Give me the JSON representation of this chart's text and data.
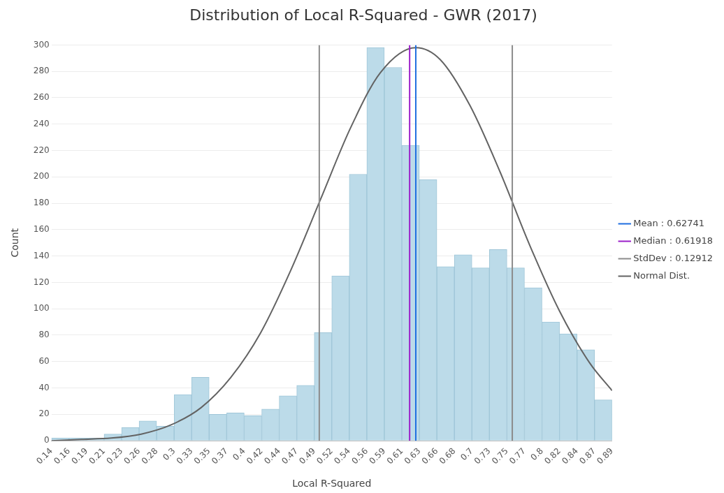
{
  "chart_data": {
    "type": "histogram",
    "title": "Distribution of Local R-Squared - GWR (2017)",
    "xlabel": "Local R-Squared",
    "ylabel": "Count",
    "bins": [
      0.14,
      0.1634,
      0.1869,
      0.2103,
      0.2338,
      0.2572,
      0.2806,
      0.3041,
      0.3275,
      0.3509,
      0.3744,
      0.3978,
      0.4213,
      0.4447,
      0.4681,
      0.4916,
      0.515,
      0.5384,
      0.5619,
      0.5853,
      0.6088,
      0.6322,
      0.6556,
      0.6791,
      0.7025,
      0.7259,
      0.7494,
      0.7728,
      0.7963,
      0.8197,
      0.8431,
      0.8666,
      0.89
    ],
    "values": [
      2,
      2,
      2,
      5,
      10,
      15,
      11,
      35,
      48,
      20,
      21,
      19,
      24,
      34,
      42,
      82,
      125,
      202,
      298,
      283,
      224,
      198,
      132,
      141,
      131,
      145,
      131,
      116,
      90,
      81,
      69,
      31
    ],
    "color": "#bcdbe9",
    "series": [
      {
        "type": "line",
        "name": "Mean : 0.62741",
        "color": "#1f6fe0",
        "x": [
          0.62741,
          0.62741
        ],
        "values": [
          0,
          300
        ]
      },
      {
        "type": "line",
        "name": "Median : 0.61918",
        "color": "#9b1fc9",
        "x": [
          0.61918,
          0.61918
        ],
        "values": [
          0,
          300
        ]
      },
      {
        "type": "line",
        "name": "StdDev : 0.12912",
        "color": "#8c8c8c",
        "x": [
          0.49829,
          0.49829
        ],
        "values": [
          0,
          300
        ]
      },
      {
        "type": "line",
        "color": "#8c8c8c",
        "x": [
          0.75653,
          0.75653
        ],
        "values": [
          0,
          300
        ]
      },
      {
        "type": "line",
        "name": "Normal Dist.",
        "color": "#636363",
        "x": [
          0.14,
          0.18,
          0.22,
          0.26,
          0.3,
          0.34,
          0.38,
          0.42,
          0.46,
          0.5,
          0.54,
          0.58,
          0.62741,
          0.66,
          0.7,
          0.74,
          0.78,
          0.82,
          0.86,
          0.89
        ],
        "values": [
          0,
          1,
          2,
          5,
          12,
          25,
          48,
          82,
          129,
          183,
          237,
          279,
          298,
          289,
          254,
          204,
          148,
          98,
          59,
          38
        ]
      }
    ],
    "xlim": [
      0.14,
      0.89
    ],
    "xticks": [
      {
        "value": 0.14,
        "label": "0.14"
      },
      {
        "value": 0.1634,
        "label": "0.16"
      },
      {
        "value": 0.1869,
        "label": "0.19"
      },
      {
        "value": 0.2103,
        "label": "0.21"
      },
      {
        "value": 0.2338,
        "label": "0.23"
      },
      {
        "value": 0.2572,
        "label": "0.26"
      },
      {
        "value": 0.2806,
        "label": "0.28"
      },
      {
        "value": 0.3041,
        "label": "0.3"
      },
      {
        "value": 0.3275,
        "label": "0.33"
      },
      {
        "value": 0.3509,
        "label": "0.35"
      },
      {
        "value": 0.3744,
        "label": "0.37"
      },
      {
        "value": 0.3978,
        "label": "0.4"
      },
      {
        "value": 0.4213,
        "label": "0.42"
      },
      {
        "value": 0.4447,
        "label": "0.44"
      },
      {
        "value": 0.4681,
        "label": "0.47"
      },
      {
        "value": 0.4916,
        "label": "0.49"
      },
      {
        "value": 0.515,
        "label": "0.52"
      },
      {
        "value": 0.5384,
        "label": "0.54"
      },
      {
        "value": 0.5619,
        "label": "0.56"
      },
      {
        "value": 0.5853,
        "label": "0.59"
      },
      {
        "value": 0.6088,
        "label": "0.61"
      },
      {
        "value": 0.6322,
        "label": "0.63"
      },
      {
        "value": 0.6556,
        "label": "0.66"
      },
      {
        "value": 0.6791,
        "label": "0.68"
      },
      {
        "value": 0.7025,
        "label": "0.7"
      },
      {
        "value": 0.7259,
        "label": "0.73"
      },
      {
        "value": 0.7494,
        "label": "0.75"
      },
      {
        "value": 0.7728,
        "label": "0.77"
      },
      {
        "value": 0.7963,
        "label": "0.8"
      },
      {
        "value": 0.8197,
        "label": "0.82"
      },
      {
        "value": 0.8431,
        "label": "0.84"
      },
      {
        "value": 0.8666,
        "label": "0.87"
      },
      {
        "value": 0.89,
        "label": "0.89"
      }
    ],
    "ylim": [
      0,
      300
    ],
    "yticks": [
      0,
      20,
      40,
      60,
      80,
      100,
      120,
      140,
      160,
      180,
      200,
      220,
      240,
      260,
      280,
      300
    ],
    "grid": "y",
    "legend": "right"
  }
}
